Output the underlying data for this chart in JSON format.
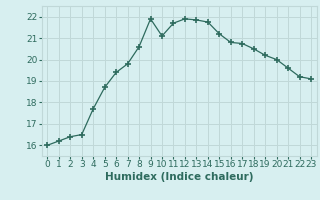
{
  "x": [
    0,
    1,
    2,
    3,
    4,
    5,
    6,
    7,
    8,
    9,
    10,
    11,
    12,
    13,
    14,
    15,
    16,
    17,
    18,
    19,
    20,
    21,
    22,
    23
  ],
  "y": [
    16.0,
    16.2,
    16.4,
    16.5,
    17.7,
    18.7,
    19.4,
    19.8,
    20.6,
    21.9,
    21.1,
    21.7,
    21.9,
    21.85,
    21.75,
    21.2,
    20.8,
    20.75,
    20.5,
    20.2,
    20.0,
    19.6,
    19.2,
    19.1
  ],
  "line_color": "#2e6b5e",
  "marker": "+",
  "bg_color": "#d7eff0",
  "grid_color": "#c0d8d8",
  "xlabel": "Humidex (Indice chaleur)",
  "ylabel_ticks": [
    16,
    17,
    18,
    19,
    20,
    21,
    22
  ],
  "xlim": [
    -0.5,
    23.5
  ],
  "ylim": [
    15.5,
    22.5
  ],
  "tick_color": "#2e6b5e",
  "label_color": "#2e6b5e",
  "font_size": 6.5,
  "xlabel_fontsize": 7.5
}
